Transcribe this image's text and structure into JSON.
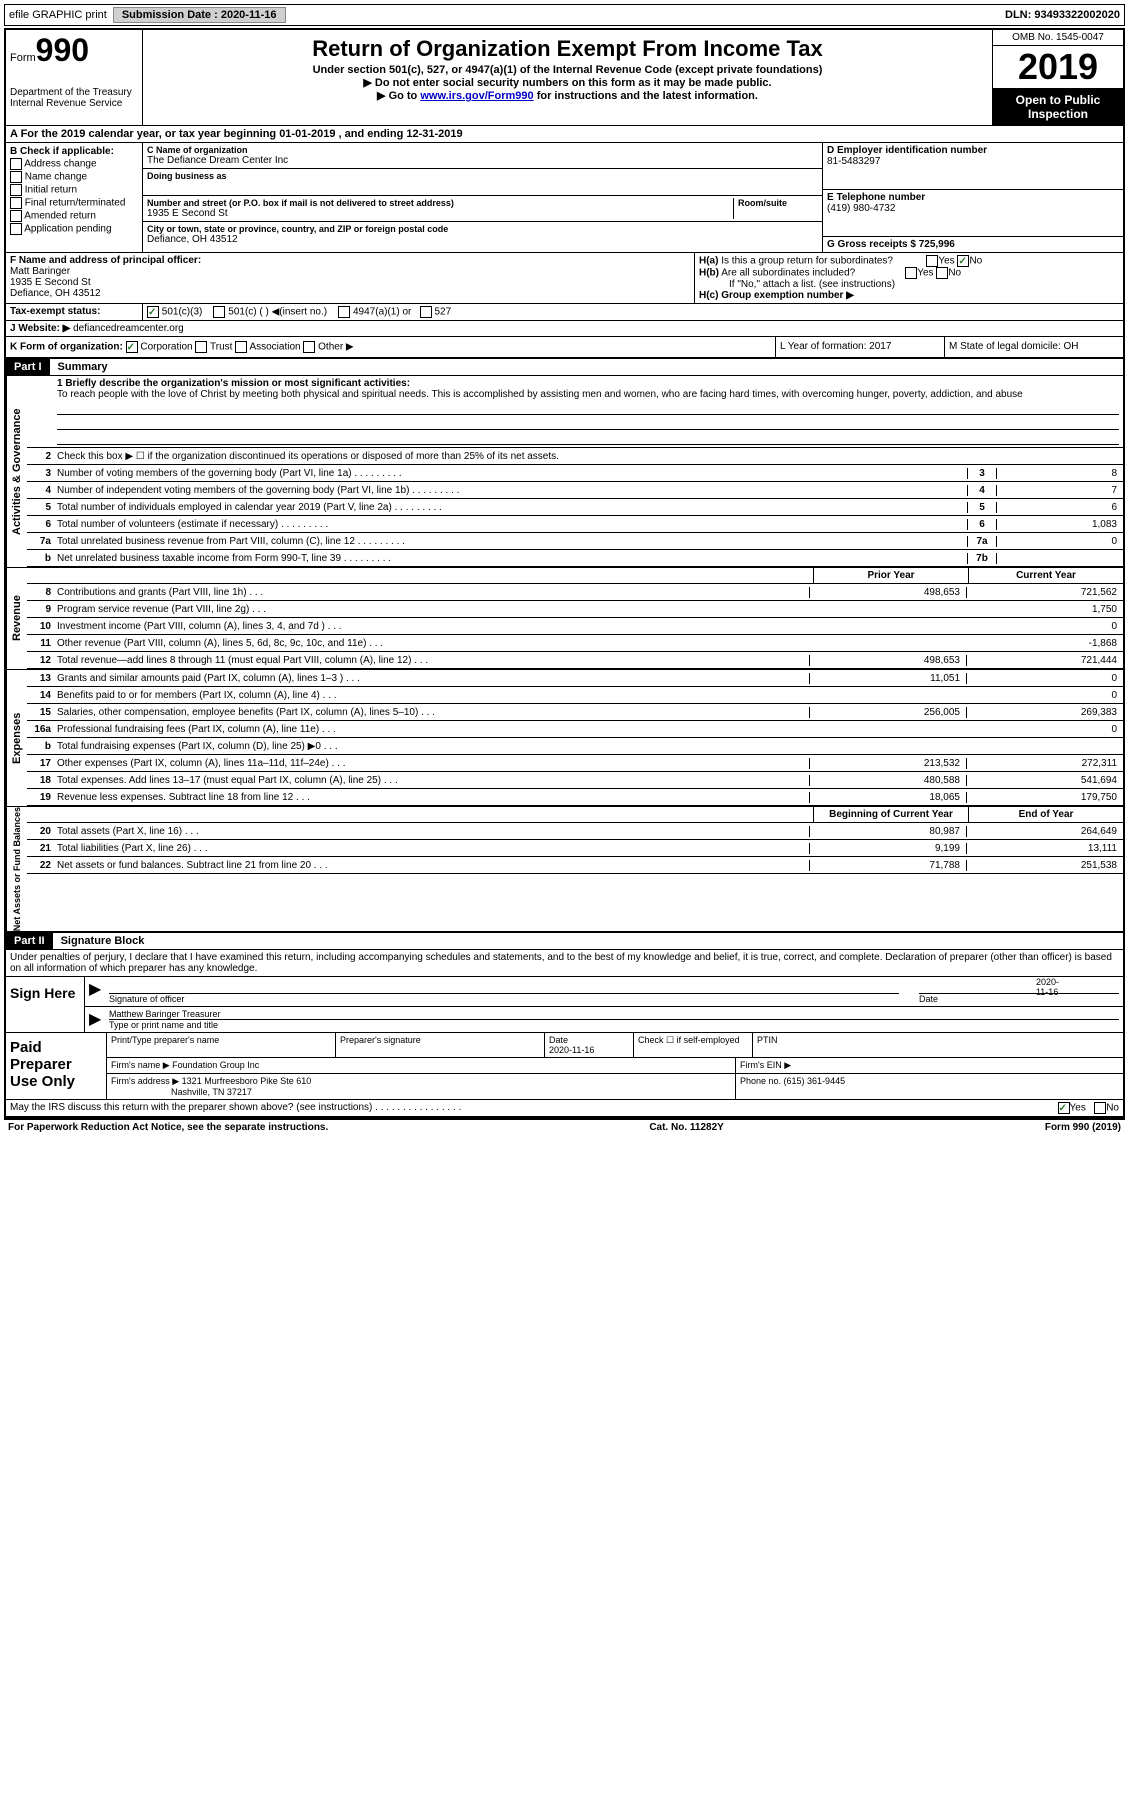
{
  "topbar": {
    "efile": "efile GRAPHIC print",
    "submission_label": "Submission Date : 2020-11-16",
    "dln": "DLN: 93493322002020"
  },
  "header": {
    "form_word": "Form",
    "form_num": "990",
    "title": "Return of Organization Exempt From Income Tax",
    "subtitle": "Under section 501(c), 527, or 4947(a)(1) of the Internal Revenue Code (except private foundations)",
    "ssn_note": "▶ Do not enter social security numbers on this form as it may be made public.",
    "goto": "▶ Go to ",
    "goto_link": "www.irs.gov/Form990",
    "goto_after": " for instructions and the latest information.",
    "dept1": "Department of the Treasury",
    "dept2": "Internal Revenue Service",
    "omb": "OMB No. 1545-0047",
    "year": "2019",
    "inspection": "Open to Public Inspection"
  },
  "lineA": "A For the 2019 calendar year, or tax year beginning 01-01-2019    , and ending 12-31-2019",
  "colB": {
    "title": "B Check if applicable:",
    "items": [
      "Address change",
      "Name change",
      "Initial return",
      "Final return/terminated",
      "Amended return",
      "Application pending"
    ]
  },
  "colC": {
    "name_label": "C Name of organization",
    "name": "The Defiance Dream Center Inc",
    "dba_label": "Doing business as",
    "addr_label": "Number and street (or P.O. box if mail is not delivered to street address)",
    "room_label": "Room/suite",
    "addr": "1935 E Second St",
    "city_label": "City or town, state or province, country, and ZIP or foreign postal code",
    "city": "Defiance, OH  43512"
  },
  "colD": {
    "ein_label": "D Employer identification number",
    "ein": "81-5483297",
    "phone_label": "E Telephone number",
    "phone": "(419) 980-4732",
    "gross_label": "G Gross receipts $ 725,996"
  },
  "rowF": {
    "label": "F Name and address of principal officer:",
    "name": "Matt Baringer",
    "addr1": "1935 E Second St",
    "addr2": "Defiance, OH  43512",
    "ha": "H(a)  Is this a group return for subordinates?",
    "hb": "H(b)  Are all subordinates included?",
    "hb_note": "If \"No,\" attach a list. (see instructions)",
    "hc": "H(c)  Group exemption number ▶",
    "yes": "Yes",
    "no": "No"
  },
  "rowI": {
    "label": "Tax-exempt status:",
    "opt1": "501(c)(3)",
    "opt2": "501(c) (  ) ◀(insert no.)",
    "opt3": "4947(a)(1) or",
    "opt4": "527"
  },
  "rowJ": {
    "label": "J  Website: ▶",
    "value": "defiancedreamcenter.org"
  },
  "rowK": {
    "label": "K Form of organization:",
    "corp": "Corporation",
    "trust": "Trust",
    "assoc": "Association",
    "other": "Other ▶",
    "l_label": "L Year of formation: 2017",
    "m_label": "M State of legal domicile: OH"
  },
  "partI": {
    "header": "Part I",
    "title": "Summary",
    "line1_label": "1  Briefly describe the organization's mission or most significant activities:",
    "mission": "To reach people with the love of Christ by meeting both physical and spiritual needs. This is accomplished by assisting men and women, who are facing hard times, with overcoming hunger, poverty, addiction, and abuse",
    "line2": "Check this box ▶ ☐  if the organization discontinued its operations or disposed of more than 25% of its net assets.",
    "governance_label": "Activities & Governance",
    "revenue_label": "Revenue",
    "expenses_label": "Expenses",
    "netassets_label": "Net Assets or Fund Balances",
    "prior_year": "Prior Year",
    "current_year": "Current Year",
    "boy": "Beginning of Current Year",
    "eoy": "End of Year",
    "lines_gov": [
      {
        "n": "3",
        "d": "Number of voting members of the governing body (Part VI, line 1a)",
        "box": "3",
        "v": "8"
      },
      {
        "n": "4",
        "d": "Number of independent voting members of the governing body (Part VI, line 1b)",
        "box": "4",
        "v": "7"
      },
      {
        "n": "5",
        "d": "Total number of individuals employed in calendar year 2019 (Part V, line 2a)",
        "box": "5",
        "v": "6"
      },
      {
        "n": "6",
        "d": "Total number of volunteers (estimate if necessary)",
        "box": "6",
        "v": "1,083"
      },
      {
        "n": "7a",
        "d": "Total unrelated business revenue from Part VIII, column (C), line 12",
        "box": "7a",
        "v": "0"
      },
      {
        "n": "b",
        "d": "Net unrelated business taxable income from Form 990-T, line 39",
        "box": "7b",
        "v": ""
      }
    ],
    "lines_rev": [
      {
        "n": "8",
        "d": "Contributions and grants (Part VIII, line 1h)",
        "p": "498,653",
        "c": "721,562"
      },
      {
        "n": "9",
        "d": "Program service revenue (Part VIII, line 2g)",
        "p": "",
        "c": "1,750"
      },
      {
        "n": "10",
        "d": "Investment income (Part VIII, column (A), lines 3, 4, and 7d )",
        "p": "",
        "c": "0"
      },
      {
        "n": "11",
        "d": "Other revenue (Part VIII, column (A), lines 5, 6d, 8c, 9c, 10c, and 11e)",
        "p": "",
        "c": "-1,868"
      },
      {
        "n": "12",
        "d": "Total revenue—add lines 8 through 11 (must equal Part VIII, column (A), line 12)",
        "p": "498,653",
        "c": "721,444"
      }
    ],
    "lines_exp": [
      {
        "n": "13",
        "d": "Grants and similar amounts paid (Part IX, column (A), lines 1–3 )",
        "p": "11,051",
        "c": "0"
      },
      {
        "n": "14",
        "d": "Benefits paid to or for members (Part IX, column (A), line 4)",
        "p": "",
        "c": "0"
      },
      {
        "n": "15",
        "d": "Salaries, other compensation, employee benefits (Part IX, column (A), lines 5–10)",
        "p": "256,005",
        "c": "269,383"
      },
      {
        "n": "16a",
        "d": "Professional fundraising fees (Part IX, column (A), line 11e)",
        "p": "",
        "c": "0"
      },
      {
        "n": "b",
        "d": "Total fundraising expenses (Part IX, column (D), line 25) ▶0",
        "p": "shaded",
        "c": "shaded"
      },
      {
        "n": "17",
        "d": "Other expenses (Part IX, column (A), lines 11a–11d, 11f–24e)",
        "p": "213,532",
        "c": "272,311"
      },
      {
        "n": "18",
        "d": "Total expenses. Add lines 13–17 (must equal Part IX, column (A), line 25)",
        "p": "480,588",
        "c": "541,694"
      },
      {
        "n": "19",
        "d": "Revenue less expenses. Subtract line 18 from line 12",
        "p": "18,065",
        "c": "179,750"
      }
    ],
    "lines_net": [
      {
        "n": "20",
        "d": "Total assets (Part X, line 16)",
        "p": "80,987",
        "c": "264,649"
      },
      {
        "n": "21",
        "d": "Total liabilities (Part X, line 26)",
        "p": "9,199",
        "c": "13,111"
      },
      {
        "n": "22",
        "d": "Net assets or fund balances. Subtract line 21 from line 20",
        "p": "71,788",
        "c": "251,538"
      }
    ]
  },
  "partII": {
    "header": "Part II",
    "title": "Signature Block",
    "declaration": "Under penalties of perjury, I declare that I have examined this return, including accompanying schedules and statements, and to the best of my knowledge and belief, it is true, correct, and complete. Declaration of preparer (other than officer) is based on all information of which preparer has any knowledge.",
    "sign_here": "Sign Here",
    "sig_officer": "Signature of officer",
    "sig_date": "2020-11-16",
    "date_label": "Date",
    "officer_name": "Matthew Baringer Treasurer",
    "type_label": "Type or print name and title",
    "paid_label": "Paid Preparer Use Only",
    "prep_name_label": "Print/Type preparer's name",
    "prep_sig_label": "Preparer's signature",
    "prep_date_label": "Date",
    "prep_date": "2020-11-16",
    "check_self": "Check ☐ if self-employed",
    "ptin_label": "PTIN",
    "firm_name_label": "Firm's name    ▶",
    "firm_name": "Foundation Group Inc",
    "firm_ein_label": "Firm's EIN ▶",
    "firm_addr_label": "Firm's address ▶",
    "firm_addr1": "1321 Murfreesboro Pike Ste 610",
    "firm_addr2": "Nashville, TN  37217",
    "firm_phone_label": "Phone no. (615) 361-9445",
    "discuss": "May the IRS discuss this return with the preparer shown above? (see instructions)",
    "yes": "Yes",
    "no": "No"
  },
  "footer": {
    "paperwork": "For Paperwork Reduction Act Notice, see the separate instructions.",
    "cat": "Cat. No. 11282Y",
    "form": "Form 990 (2019)"
  }
}
